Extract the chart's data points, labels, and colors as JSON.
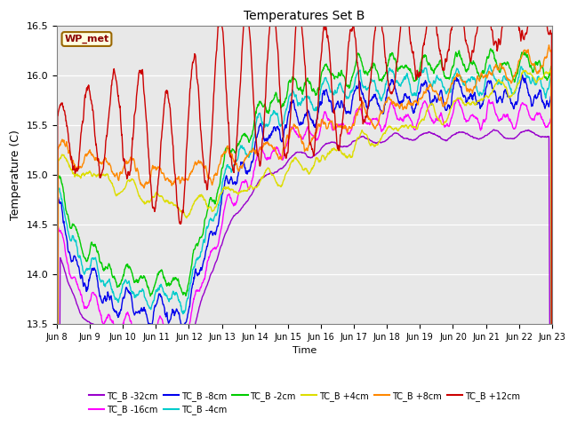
{
  "title": "Temperatures Set B",
  "xlabel": "Time",
  "ylabel": "Temperature (C)",
  "ylim": [
    13.5,
    16.5
  ],
  "x_tick_labels": [
    "Jun 8",
    "Jun 9",
    "Jun 10",
    "Jun 11",
    "Jun 12",
    "Jun 13",
    "Jun 14",
    "Jun 15",
    "Jun 16",
    "Jun 17",
    "Jun 18",
    "Jun 19",
    "Jun 20",
    "Jun 21",
    "Jun 22",
    "Jun 23"
  ],
  "annotation": "WP_met",
  "series": [
    {
      "label": "TC_B -32cm",
      "color": "#9900cc"
    },
    {
      "label": "TC_B -16cm",
      "color": "#ff00ff"
    },
    {
      "label": "TC_B -8cm",
      "color": "#0000ee"
    },
    {
      "label": "TC_B -4cm",
      "color": "#00cccc"
    },
    {
      "label": "TC_B -2cm",
      "color": "#00cc00"
    },
    {
      "label": "TC_B +4cm",
      "color": "#dddd00"
    },
    {
      "label": "TC_B +8cm",
      "color": "#ff8800"
    },
    {
      "label": "TC_B +12cm",
      "color": "#cc0000"
    }
  ],
  "plot_bg_color": "#e8e8e8",
  "fig_bg_color": "#ffffff",
  "yticks": [
    13.5,
    14.0,
    14.5,
    15.0,
    15.5,
    16.0,
    16.5
  ]
}
